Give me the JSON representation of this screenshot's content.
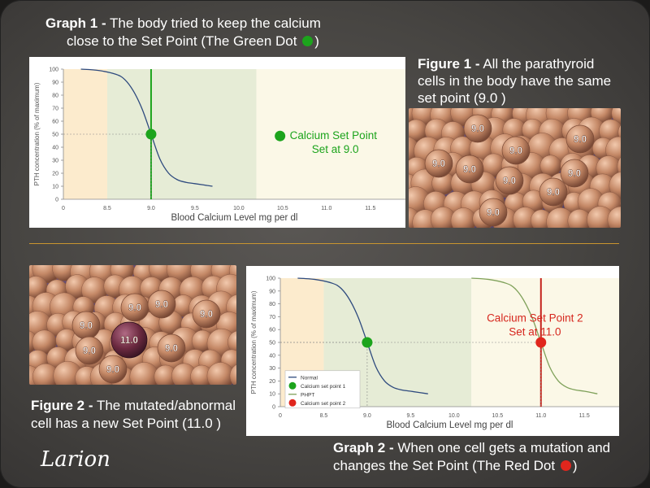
{
  "graph1_caption": {
    "title": "Graph 1 -",
    "text1": "The body tried to keep the calcium",
    "text2": "close to the Set Point  (The Green Dot ",
    "close": ")",
    "dot_color": "#1ca41c"
  },
  "figure1_caption": {
    "title": "Figure 1 -",
    "text1": "All the parathyroid",
    "text2": "cells in the body have the same",
    "text3": "set point (9.0 )"
  },
  "figure2_caption": {
    "title": "Figure 2 -",
    "text1": "The mutated/abnormal",
    "text2": "cell has a new Set Point (11.0 )"
  },
  "graph2_caption": {
    "title": "Graph 2 -",
    "text1": "When one cell gets a mutation and",
    "text2": "changes the Set Point  (The Red Dot ",
    "close": ")",
    "dot_color": "#e0261d"
  },
  "signature": "Larion",
  "figure1_cells": {
    "labels": [
      "9.0",
      "9.0",
      "9.0",
      "9.0",
      "9.0",
      "9.0",
      "9.0",
      "9.0",
      "9.0"
    ]
  },
  "figure2_cells": {
    "normal_labels": [
      "9.0",
      "9.0",
      "9.0",
      "9.0",
      "9.0",
      "9.0",
      "9.0"
    ],
    "mutant_label": "11.0",
    "mutant_color": "#7a3048"
  },
  "chart_data": [
    {
      "type": "line",
      "title": "",
      "xlabel": "Blood Calcium Level mg per dl",
      "ylabel": "PTH concentration (% of maximum)",
      "xlim": [
        8.0,
        11.9
      ],
      "ylim": [
        0,
        100
      ],
      "xticks": [
        "0",
        "8.5",
        "9.0",
        "9.5",
        "10.0",
        "10.5",
        "11.0",
        "11.5"
      ],
      "yticks": [
        0,
        10,
        20,
        30,
        40,
        50,
        60,
        70,
        80,
        90,
        100
      ],
      "regions": [
        {
          "from": 8.0,
          "to": 8.5,
          "color": "#fcebcd"
        },
        {
          "from": 8.5,
          "to": 10.2,
          "color": "#e6ecd6"
        },
        {
          "from": 10.2,
          "to": 11.9,
          "color": "#fbf8e7"
        }
      ],
      "series": [
        {
          "name": "",
          "color": "#2e4a7e",
          "x": [
            8.2,
            8.4,
            8.6,
            8.7,
            8.8,
            8.9,
            9.0,
            9.1,
            9.2,
            9.3,
            9.4,
            9.5,
            9.7
          ],
          "y": [
            100,
            99,
            96,
            92,
            83,
            69,
            50,
            31,
            20,
            15,
            13,
            12,
            10
          ]
        }
      ],
      "vline": {
        "x": 9.0,
        "color": "#1ca41c"
      },
      "set_point": {
        "x": 9.0,
        "y": 50,
        "color": "#1ca41c"
      },
      "annotation": {
        "line1": "Calcium Set Point",
        "line2": "Set at 9.0",
        "color": "#1ca41c",
        "x": 10.6,
        "y": 48
      }
    },
    {
      "type": "line",
      "title": "",
      "xlabel": "Blood Calcium Level mg per dl",
      "ylabel": "PTH concentration (% of maximum)",
      "xlim": [
        8.0,
        11.9
      ],
      "ylim": [
        0,
        100
      ],
      "xticks": [
        "0",
        "8.5",
        "9.0",
        "9.5",
        "10.0",
        "10.5",
        "11.0",
        "11.5"
      ],
      "yticks": [
        0,
        10,
        20,
        30,
        40,
        50,
        60,
        70,
        80,
        90,
        100
      ],
      "regions": [
        {
          "from": 8.0,
          "to": 8.5,
          "color": "#fcebcd"
        },
        {
          "from": 8.5,
          "to": 10.2,
          "color": "#e6ecd6"
        },
        {
          "from": 10.2,
          "to": 11.9,
          "color": "#fbf8e7"
        }
      ],
      "series": [
        {
          "name": "Normal",
          "color": "#2e4a7e",
          "x": [
            8.2,
            8.4,
            8.6,
            8.7,
            8.8,
            8.9,
            9.0,
            9.1,
            9.2,
            9.3,
            9.4,
            9.5,
            9.7
          ],
          "y": [
            100,
            99,
            96,
            92,
            83,
            69,
            50,
            31,
            20,
            15,
            13,
            12,
            10
          ]
        },
        {
          "name": "PHPT",
          "color": "#7fa15a",
          "x": [
            10.2,
            10.4,
            10.6,
            10.7,
            10.8,
            10.9,
            11.0,
            11.1,
            11.2,
            11.3,
            11.4,
            11.5,
            11.65
          ],
          "y": [
            100,
            99,
            96,
            92,
            83,
            69,
            50,
            31,
            20,
            15,
            13,
            12,
            10
          ]
        }
      ],
      "vline": {
        "x": 11.0,
        "color": "#c4231c"
      },
      "points": [
        {
          "name": "Calcium set point 1",
          "x": 9.0,
          "y": 50,
          "color": "#1ca41c"
        },
        {
          "name": "Calcium set point 2",
          "x": 11.0,
          "y": 50,
          "color": "#e0261d"
        }
      ],
      "legend": {
        "position": "bottom-left",
        "items": [
          {
            "label": "Normal",
            "kind": "line",
            "color": "#2e4a7e"
          },
          {
            "label": "Calcium set point 1",
            "kind": "dot",
            "color": "#1ca41c"
          },
          {
            "label": "PHPT",
            "kind": "line",
            "color": "#7fa15a"
          },
          {
            "label": "Calcium set point 2",
            "kind": "dot",
            "color": "#e0261d"
          }
        ]
      },
      "annotation": {
        "line1": "Calcium Set Point 2",
        "line2": "Set at 11.0",
        "color": "#d6261d",
        "x": 10.65,
        "y": 68
      }
    }
  ]
}
